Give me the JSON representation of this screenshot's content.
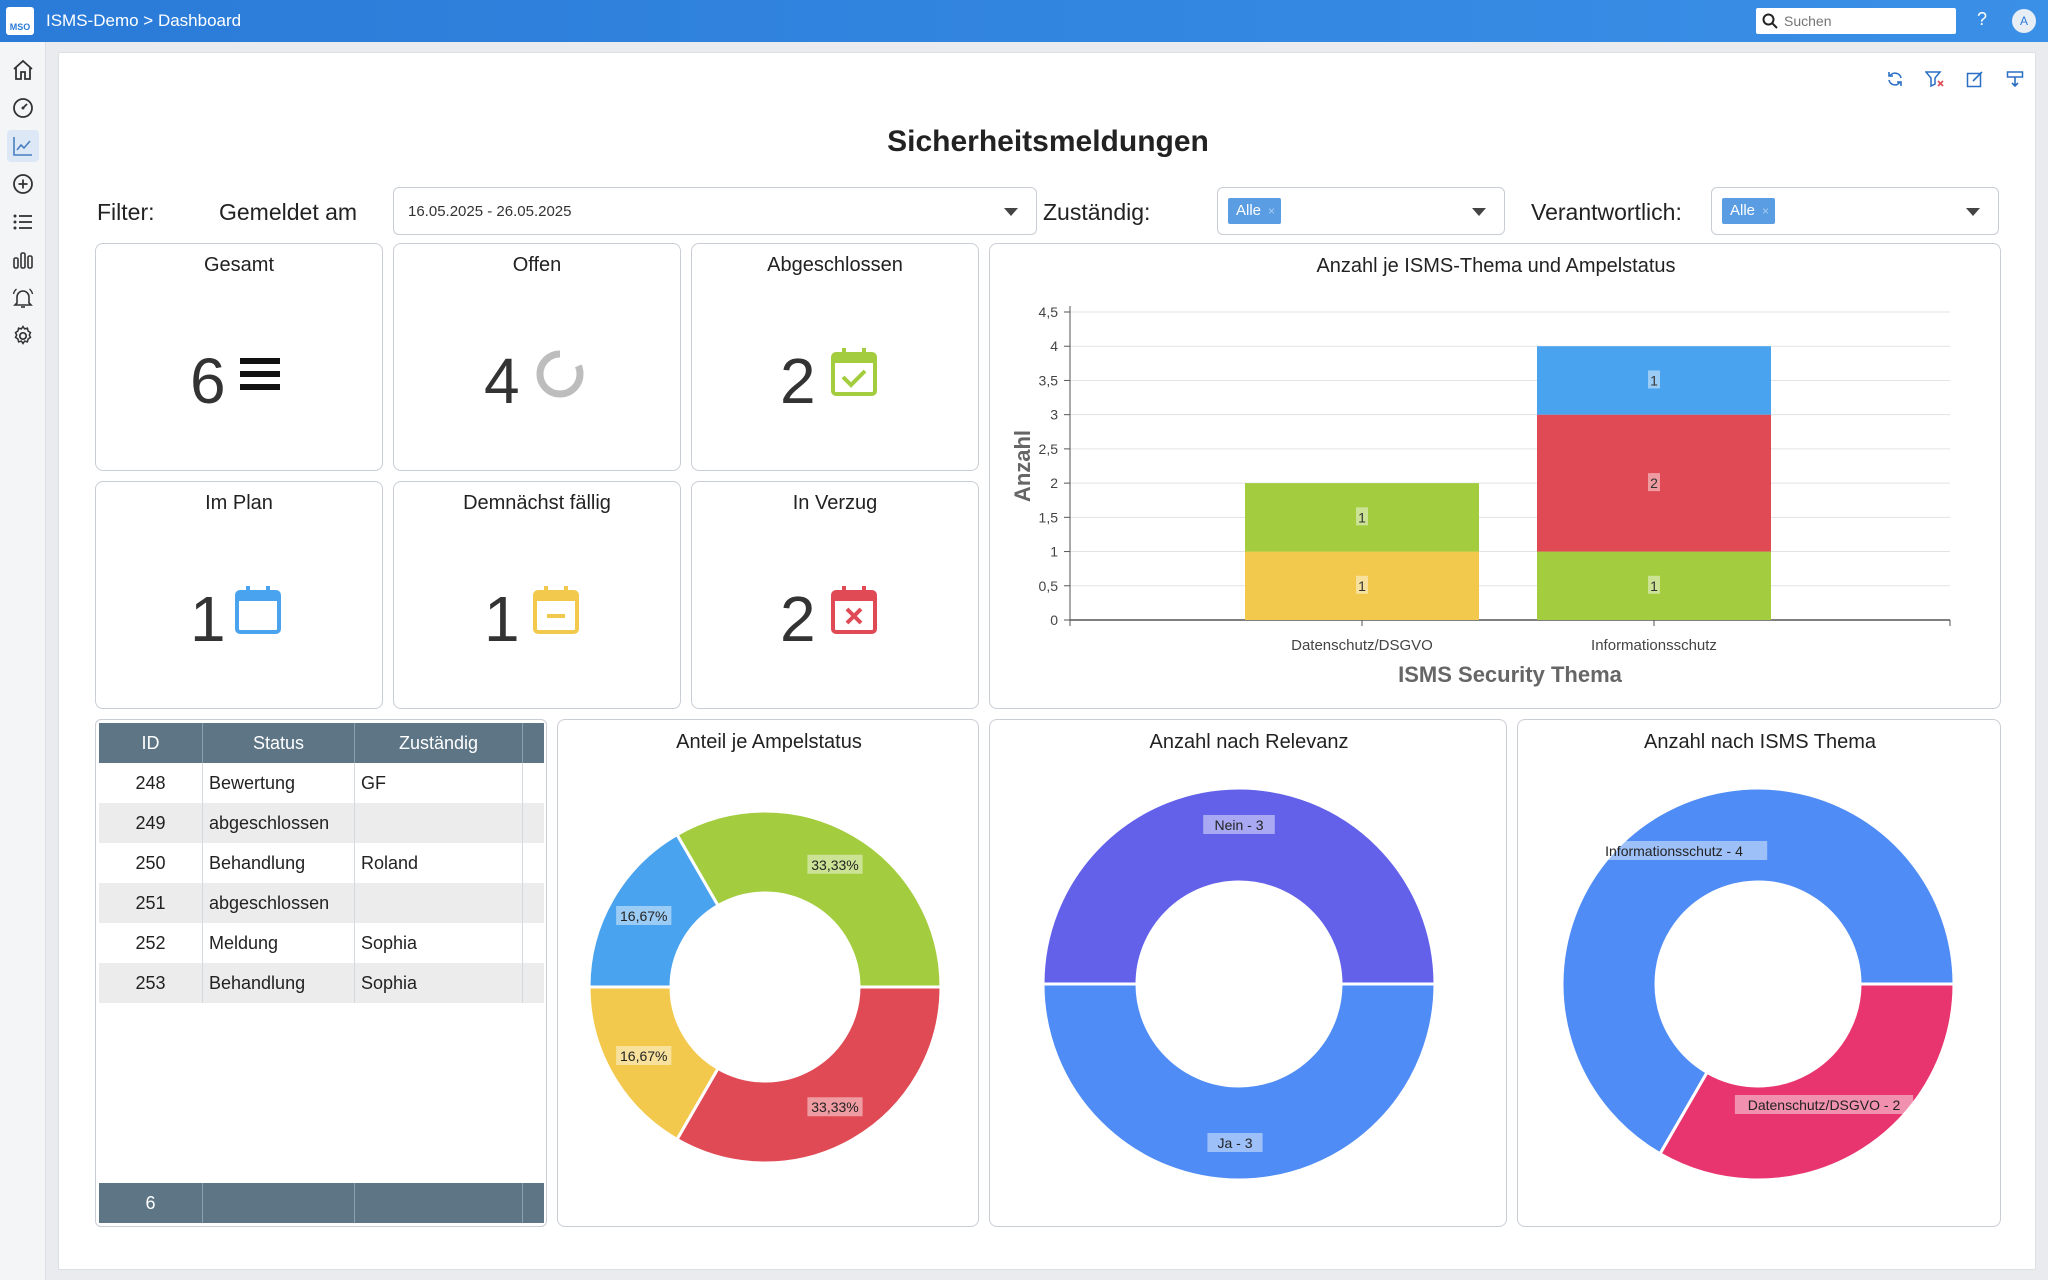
{
  "app": {
    "logo_text": "MSO",
    "breadcrumb": "ISMS-Demo > Dashboard",
    "search_placeholder": "Suchen",
    "help": "?",
    "avatar": "A"
  },
  "page": {
    "title": "Sicherheitsmeldungen"
  },
  "filter": {
    "label": "Filter:",
    "gemeldet_label": "Gemeldet am",
    "date_range": "16.05.2025 - 26.05.2025",
    "zustaendig_label": "Zuständig:",
    "zustaendig_chip": "Alle",
    "verantwortlich_label": "Verantwortlich:",
    "verantwortlich_chip": "Alle",
    "chip_remove": "×"
  },
  "kpis": {
    "gesamt": {
      "title": "Gesamt",
      "value": "6"
    },
    "offen": {
      "title": "Offen",
      "value": "4"
    },
    "abgeschlossen": {
      "title": "Abgeschlossen",
      "value": "2"
    },
    "im_plan": {
      "title": "Im Plan",
      "value": "1"
    },
    "demnaechst": {
      "title": "Demnächst fällig",
      "value": "1"
    },
    "verzug": {
      "title": "In Verzug",
      "value": "2"
    }
  },
  "table": {
    "headers": {
      "id": "ID",
      "status": "Status",
      "zustaendig": "Zuständig"
    },
    "rows": [
      {
        "id": "248",
        "status": "Bewertung",
        "zustaendig": "GF"
      },
      {
        "id": "249",
        "status": "abgeschlossen",
        "zustaendig": ""
      },
      {
        "id": "250",
        "status": "Behandlung",
        "zustaendig": "Roland"
      },
      {
        "id": "251",
        "status": "abgeschlossen",
        "zustaendig": ""
      },
      {
        "id": "252",
        "status": "Meldung",
        "zustaendig": "Sophia"
      },
      {
        "id": "253",
        "status": "Behandlung",
        "zustaendig": "Sophia"
      }
    ],
    "footer_count": "6"
  },
  "colors": {
    "green": "#a3cd3e",
    "yellow": "#f2c94c",
    "red": "#e04a55",
    "blue": "#4aa3ee",
    "purple": "#6361ea",
    "royal": "#4f8cf5",
    "pink": "#e8356f"
  },
  "chart_data": [
    {
      "type": "bar",
      "stacked": true,
      "title": "Anzahl je ISMS-Thema und Ampelstatus",
      "xlabel": "ISMS Security Thema",
      "ylabel": "Anzahl",
      "ylim": [
        0,
        4.5
      ],
      "yticks": [
        "0",
        "0,5",
        "1",
        "1,5",
        "2",
        "2,5",
        "3",
        "3,5",
        "4",
        "4,5"
      ],
      "categories": [
        "Datenschutz/DSGVO",
        "Informationsschutz"
      ],
      "series": [
        {
          "color": "#f2c94c",
          "values": [
            1,
            0
          ]
        },
        {
          "color": "#a3cd3e",
          "values": [
            1,
            1
          ]
        },
        {
          "color": "#e04a55",
          "values": [
            0,
            2
          ]
        },
        {
          "color": "#4aa3ee",
          "values": [
            0,
            1
          ]
        }
      ]
    },
    {
      "type": "pie",
      "donut": true,
      "title": "Anteil je Ampelstatus",
      "slices": [
        {
          "label": "33,33%",
          "value": 2,
          "color": "#a3cd3e"
        },
        {
          "label": "33,33%",
          "value": 2,
          "color": "#e04a55"
        },
        {
          "label": "16,67%",
          "value": 1,
          "color": "#f2c94c"
        },
        {
          "label": "16,67%",
          "value": 1,
          "color": "#4aa3ee"
        }
      ]
    },
    {
      "type": "pie",
      "donut": true,
      "title": "Anzahl nach Relevanz",
      "slices": [
        {
          "label": "Ja - 3",
          "value": 3,
          "color": "#4f8cf5"
        },
        {
          "label": "Nein - 3",
          "value": 3,
          "color": "#6361ea"
        }
      ]
    },
    {
      "type": "pie",
      "donut": true,
      "title": "Anzahl nach ISMS Thema",
      "slices": [
        {
          "label": "Datenschutz/DSGVO - 2",
          "value": 2,
          "color": "#e8356f"
        },
        {
          "label": "Informationsschutz - 4",
          "value": 4,
          "color": "#4f8cf5"
        }
      ]
    }
  ]
}
